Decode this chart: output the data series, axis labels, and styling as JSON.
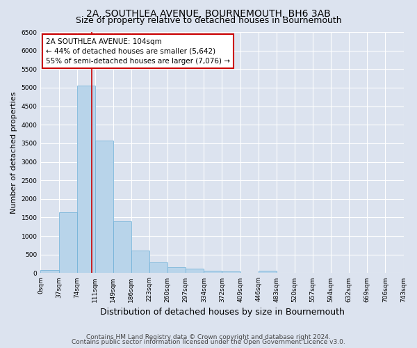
{
  "title": "2A, SOUTHLEA AVENUE, BOURNEMOUTH, BH6 3AB",
  "subtitle": "Size of property relative to detached houses in Bournemouth",
  "xlabel": "Distribution of detached houses by size in Bournemouth",
  "ylabel": "Number of detached properties",
  "bins": [
    "0sqm",
    "37sqm",
    "74sqm",
    "111sqm",
    "149sqm",
    "186sqm",
    "223sqm",
    "260sqm",
    "297sqm",
    "334sqm",
    "372sqm",
    "409sqm",
    "446sqm",
    "483sqm",
    "520sqm",
    "557sqm",
    "594sqm",
    "632sqm",
    "669sqm",
    "706sqm",
    "743sqm"
  ],
  "values": [
    80,
    1640,
    5060,
    3580,
    1390,
    610,
    290,
    155,
    120,
    70,
    40,
    10,
    60,
    0,
    0,
    0,
    0,
    0,
    0,
    0
  ],
  "bar_color": "#b8d4ea",
  "bar_edge_color": "#6aaed6",
  "background_color": "#dce3ef",
  "grid_color": "#ffffff",
  "annotation_text": "2A SOUTHLEA AVENUE: 104sqm\n← 44% of detached houses are smaller (5,642)\n55% of semi-detached houses are larger (7,076) →",
  "annotation_box_color": "#ffffff",
  "annotation_box_edge": "#cc0000",
  "vline_color": "#cc0000",
  "ylim": [
    0,
    6500
  ],
  "yticks": [
    0,
    500,
    1000,
    1500,
    2000,
    2500,
    3000,
    3500,
    4000,
    4500,
    5000,
    5500,
    6000,
    6500
  ],
  "footer1": "Contains HM Land Registry data © Crown copyright and database right 2024.",
  "footer2": "Contains public sector information licensed under the Open Government Licence v3.0.",
  "title_fontsize": 10,
  "subtitle_fontsize": 9,
  "xlabel_fontsize": 9,
  "ylabel_fontsize": 8,
  "tick_fontsize": 6.5,
  "annotation_fontsize": 7.5,
  "footer_fontsize": 6.5
}
